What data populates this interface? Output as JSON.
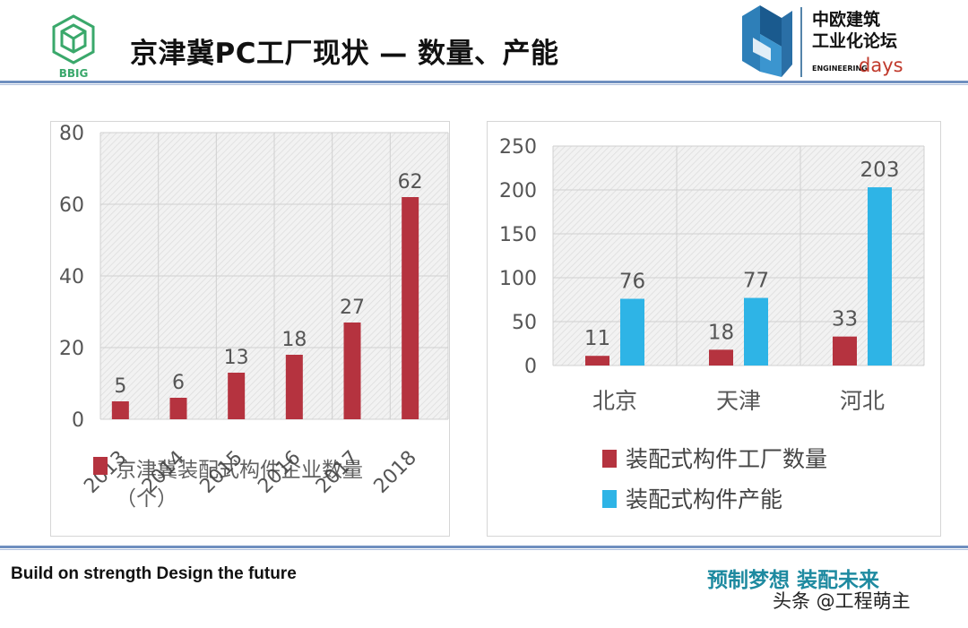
{
  "header": {
    "logo_left_text": "BBIG",
    "title": "京津冀PC工厂现状 — 数量、产能",
    "logo_right": {
      "line1": "中欧建筑",
      "line2": "工业化论坛",
      "engineering": "ENGINEERING",
      "days": "days"
    }
  },
  "footer": {
    "slogan_left": "Build on strength Design the future",
    "slogan_right": "预制梦想 装配未来",
    "watermark": "头条 @工程萌主"
  },
  "colors": {
    "red": "#b5333f",
    "blue": "#2eb4e6",
    "rule": "#6f8fbf",
    "slogan": "#1e8aa0"
  },
  "chart_data": [
    {
      "type": "bar",
      "categories": [
        "2013",
        "2014",
        "2015",
        "2016",
        "2017",
        "2018"
      ],
      "series": [
        {
          "name": "京津冀装配式构件企业数量（个）",
          "values": [
            5,
            6,
            13,
            18,
            27,
            62
          ],
          "color": "#b5333f"
        }
      ],
      "ylim": [
        0,
        80
      ],
      "yticks": [
        0,
        20,
        40,
        60,
        80
      ],
      "legend_line1": "京津冀装配式构件企业数量",
      "legend_line2": "（个）",
      "grid": true
    },
    {
      "type": "bar",
      "categories": [
        "北京",
        "天津",
        "河北"
      ],
      "series": [
        {
          "name": "装配式构件工厂数量",
          "values": [
            11,
            18,
            33
          ],
          "color": "#b5333f"
        },
        {
          "name": "装配式构件产能",
          "values": [
            76,
            77,
            203
          ],
          "color": "#2eb4e6"
        }
      ],
      "ylim": [
        0,
        250
      ],
      "yticks": [
        0,
        50,
        100,
        150,
        200,
        250
      ],
      "grid": true,
      "legend_position": "bottom"
    }
  ]
}
